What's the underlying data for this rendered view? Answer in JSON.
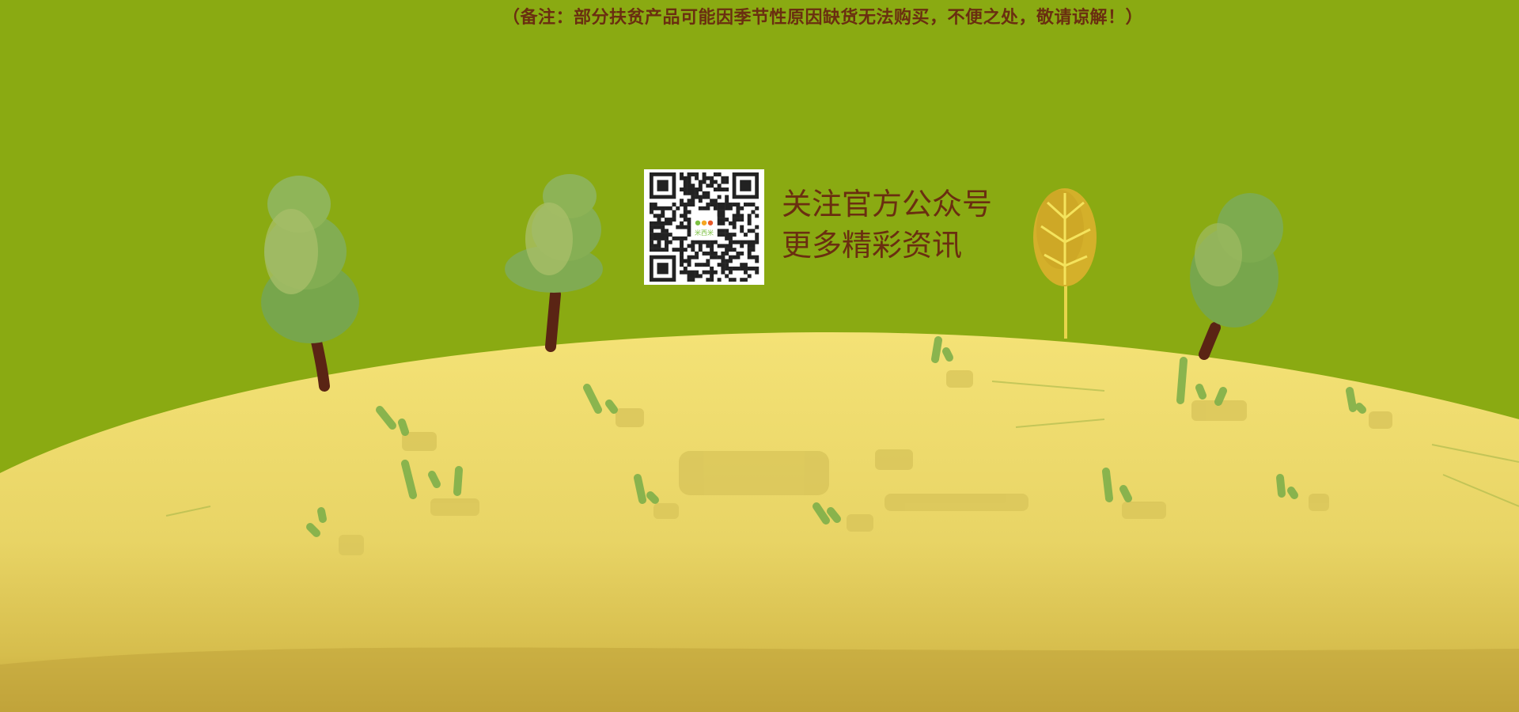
{
  "notice": {
    "text": "（备注：部分扶贫产品可能因季节性原因缺货无法购买，不便之处，敬请谅解！）"
  },
  "follow": {
    "line1": "关注官方公众号",
    "line2": "更多精彩资讯"
  },
  "qr": {
    "logo_text": "米西米"
  },
  "colors": {
    "background": "#8aaa12",
    "hill": "#f0dc6a",
    "text": "#6a2e10",
    "tree_green": "#7aa84a",
    "tree_gold": "#d4b02a",
    "trunk": "#5a2a14"
  }
}
